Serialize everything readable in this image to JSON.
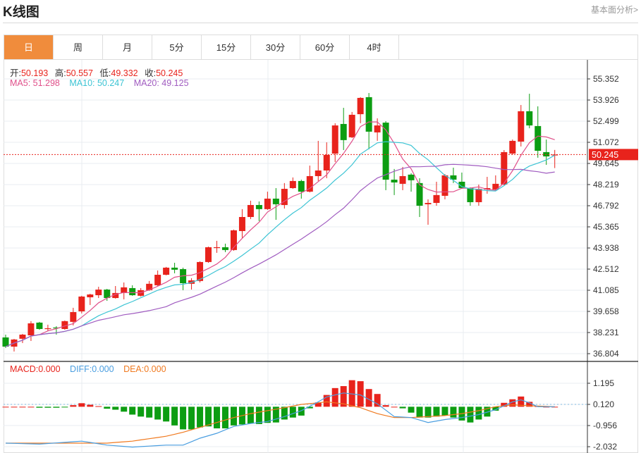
{
  "header": {
    "title": "K线图",
    "fundamental_link": "基本面分析>"
  },
  "tabs": [
    {
      "label": "日",
      "active": true
    },
    {
      "label": "周"
    },
    {
      "label": "月"
    },
    {
      "label": "5分"
    },
    {
      "label": "15分"
    },
    {
      "label": "30分"
    },
    {
      "label": "60分"
    },
    {
      "label": "4时"
    }
  ],
  "ohlc_legend": {
    "open_label": "开:",
    "open": "50.193",
    "high_label": "高:",
    "high": "50.557",
    "low_label": "低:",
    "low": "49.332",
    "close_label": "收:",
    "close": "50.245"
  },
  "ma_legend": {
    "ma5": "MA5: 51.298",
    "ma10": "MA10: 50.247",
    "ma20": "MA20: 49.125"
  },
  "macd_legend": {
    "macd": "MACD:0.000",
    "diff": "DIFF:0.000",
    "dea": "DEA:0.000"
  },
  "colors": {
    "up": "#e8231c",
    "down": "#0c9d12",
    "ma5": "#e0508a",
    "ma10": "#3cc4d4",
    "ma20": "#a05cc0",
    "diff": "#4a9ee0",
    "dea": "#f07a20",
    "accent": "#f08c3c"
  },
  "chart_data": {
    "type": "candlestick",
    "price_axis_ticks": [
      "55.352",
      "53.926",
      "52.499",
      "51.072",
      "49.645",
      "48.219",
      "46.792",
      "45.365",
      "43.938",
      "42.512",
      "41.085",
      "39.658",
      "38.231",
      "36.804"
    ],
    "price_range": [
      36.804,
      55.352
    ],
    "current_price": "50.245",
    "candles": [
      [
        37.9,
        37.28,
        38.09,
        37.19
      ],
      [
        37.28,
        37.76,
        37.8,
        36.95
      ],
      [
        37.81,
        38.09,
        38.14,
        37.52
      ],
      [
        38.04,
        38.85,
        39.0,
        37.66
      ],
      [
        38.9,
        38.47,
        38.95,
        38.42
      ],
      [
        38.47,
        38.52,
        38.76,
        38.33
      ],
      [
        38.57,
        38.52,
        38.66,
        38.09
      ],
      [
        38.47,
        39.0,
        39.04,
        38.42
      ],
      [
        38.95,
        39.61,
        39.9,
        38.71
      ],
      [
        39.66,
        40.66,
        40.71,
        39.52
      ],
      [
        40.61,
        40.8,
        40.85,
        40.09
      ],
      [
        40.75,
        41.13,
        41.32,
        40.56
      ],
      [
        41.13,
        40.56,
        41.18,
        40.37
      ],
      [
        40.56,
        40.9,
        41.37,
        40.52
      ],
      [
        40.9,
        41.28,
        41.61,
        40.47
      ],
      [
        41.23,
        40.75,
        41.42,
        40.71
      ],
      [
        40.71,
        41.09,
        41.23,
        40.66
      ],
      [
        41.09,
        41.52,
        41.71,
        41.04
      ],
      [
        41.42,
        42.13,
        42.42,
        41.37
      ],
      [
        42.13,
        42.61,
        42.66,
        42.09
      ],
      [
        42.61,
        42.47,
        42.94,
        42.23
      ],
      [
        42.51,
        41.56,
        42.61,
        41.09
      ],
      [
        41.52,
        41.75,
        41.9,
        41.13
      ],
      [
        41.71,
        42.99,
        43.04,
        41.61
      ],
      [
        42.99,
        43.99,
        44.03,
        42.94
      ],
      [
        43.94,
        43.99,
        44.42,
        43.61
      ],
      [
        43.99,
        43.8,
        44.23,
        43.66
      ],
      [
        43.8,
        45.13,
        45.18,
        43.75
      ],
      [
        45.08,
        46.03,
        46.56,
        44.61
      ],
      [
        46.03,
        46.84,
        47.13,
        45.89
      ],
      [
        46.84,
        46.56,
        47.08,
        45.75
      ],
      [
        46.56,
        47.27,
        47.74,
        46.51
      ],
      [
        47.27,
        46.89,
        47.98,
        45.84
      ],
      [
        46.84,
        47.93,
        48.32,
        46.6
      ],
      [
        47.98,
        48.46,
        48.7,
        47.93
      ],
      [
        48.46,
        47.74,
        48.55,
        47.27
      ],
      [
        47.74,
        48.79,
        49.5,
        47.69
      ],
      [
        48.79,
        49.17,
        51.17,
        48.46
      ],
      [
        49.17,
        50.22,
        51.07,
        48.65
      ],
      [
        50.31,
        52.21,
        52.36,
        49.74
      ],
      [
        52.31,
        51.22,
        53.4,
        50.55
      ],
      [
        51.41,
        52.93,
        53.12,
        51.36
      ],
      [
        52.97,
        54.07,
        54.12,
        52.36
      ],
      [
        54.12,
        51.79,
        54.4,
        50.6
      ],
      [
        51.74,
        52.21,
        52.69,
        51.17
      ],
      [
        52.4,
        48.55,
        52.5,
        47.84
      ],
      [
        48.55,
        48.36,
        49.27,
        47.51
      ],
      [
        48.27,
        48.79,
        49.41,
        47.84
      ],
      [
        48.89,
        48.51,
        48.98,
        47.74
      ],
      [
        48.32,
        46.79,
        48.65,
        46.03
      ],
      [
        46.89,
        46.98,
        47.22,
        45.51
      ],
      [
        46.98,
        47.51,
        48.41,
        46.79
      ],
      [
        47.46,
        48.84,
        48.93,
        47.22
      ],
      [
        48.84,
        48.55,
        49.36,
        48.32
      ],
      [
        48.41,
        47.98,
        49.03,
        47.93
      ],
      [
        47.98,
        47.03,
        48.03,
        46.79
      ],
      [
        47.03,
        47.93,
        48.22,
        46.79
      ],
      [
        47.89,
        47.98,
        48.74,
        47.6
      ],
      [
        47.89,
        48.27,
        48.84,
        47.84
      ],
      [
        48.22,
        50.41,
        50.55,
        48.17
      ],
      [
        50.31,
        51.17,
        51.26,
        50.22
      ],
      [
        51.12,
        53.17,
        53.59,
        50.79
      ],
      [
        53.17,
        52.21,
        54.35,
        52.02
      ],
      [
        52.17,
        50.5,
        53.5,
        50.03
      ],
      [
        50.41,
        50.12,
        51.26,
        49.55
      ],
      [
        50.193,
        50.245,
        50.557,
        49.332
      ]
    ],
    "candle_fields": [
      "open",
      "close",
      "high",
      "low"
    ],
    "ma_periods": [
      5,
      10,
      20
    ],
    "macd_axis_ticks": [
      "1.195",
      "0.120",
      "-0.956",
      "-2.032"
    ],
    "macd_range": [
      -2.3,
      1.6
    ],
    "macd_hist": [
      0,
      0,
      0,
      0,
      -0.05,
      -0.05,
      -0.05,
      -0.01,
      0.08,
      0.18,
      0.1,
      0.03,
      -0.1,
      -0.15,
      -0.25,
      -0.4,
      -0.5,
      -0.55,
      -0.65,
      -0.75,
      -0.95,
      -1.15,
      -1.15,
      -1.05,
      -1.0,
      -1.1,
      -1.1,
      -0.95,
      -0.9,
      -0.85,
      -0.88,
      -0.82,
      -0.8,
      -0.65,
      -0.55,
      -0.45,
      -0.08,
      0.22,
      0.6,
      0.95,
      1.05,
      1.35,
      1.3,
      0.9,
      0.65,
      0.08,
      0,
      -0.08,
      -0.3,
      -0.55,
      -0.55,
      -0.5,
      -0.45,
      -0.55,
      -0.7,
      -0.8,
      -0.65,
      -0.5,
      -0.2,
      0.2,
      0.38,
      0.52,
      0.25,
      0.03,
      0,
      0
    ],
    "diff_points": [
      [
        0,
        -1.85
      ],
      [
        4,
        -1.9
      ],
      [
        9,
        -1.75
      ],
      [
        12,
        -1.95
      ],
      [
        15,
        -2.05
      ],
      [
        19,
        -1.95
      ],
      [
        21,
        -1.95
      ],
      [
        23,
        -1.6
      ],
      [
        25,
        -1.35
      ],
      [
        27,
        -1.0
      ],
      [
        29,
        -0.85
      ],
      [
        31,
        -0.75
      ],
      [
        33,
        -0.5
      ],
      [
        35,
        -0.2
      ],
      [
        37,
        0.25
      ],
      [
        38,
        0.5
      ],
      [
        40,
        0.7
      ],
      [
        42,
        0.6
      ],
      [
        44,
        0.15
      ],
      [
        46,
        -0.5
      ],
      [
        48,
        -0.55
      ],
      [
        50,
        -0.8
      ],
      [
        52,
        -0.65
      ],
      [
        54,
        -0.55
      ],
      [
        56,
        -0.4
      ],
      [
        58,
        -0.15
      ],
      [
        60,
        0.25
      ],
      [
        61,
        0.35
      ],
      [
        62,
        0.2
      ],
      [
        63,
        0.0
      ],
      [
        65,
        0.0
      ]
    ],
    "dea_points": [
      [
        0,
        -1.85
      ],
      [
        4,
        -1.85
      ],
      [
        8,
        -1.85
      ],
      [
        12,
        -1.85
      ],
      [
        15,
        -1.75
      ],
      [
        19,
        -1.5
      ],
      [
        21,
        -1.3
      ],
      [
        23,
        -1.05
      ],
      [
        25,
        -0.8
      ],
      [
        27,
        -0.55
      ],
      [
        29,
        -0.35
      ],
      [
        31,
        -0.2
      ],
      [
        33,
        -0.05
      ],
      [
        35,
        0.12
      ],
      [
        37,
        0.2
      ],
      [
        38,
        0.25
      ],
      [
        40,
        0.15
      ],
      [
        42,
        -0.05
      ],
      [
        44,
        -0.35
      ],
      [
        46,
        -0.55
      ],
      [
        48,
        -0.55
      ],
      [
        50,
        -0.5
      ],
      [
        52,
        -0.45
      ],
      [
        54,
        -0.35
      ],
      [
        56,
        -0.2
      ],
      [
        58,
        0.0
      ],
      [
        60,
        0.1
      ],
      [
        62,
        0.05
      ],
      [
        65,
        0.0
      ]
    ]
  }
}
